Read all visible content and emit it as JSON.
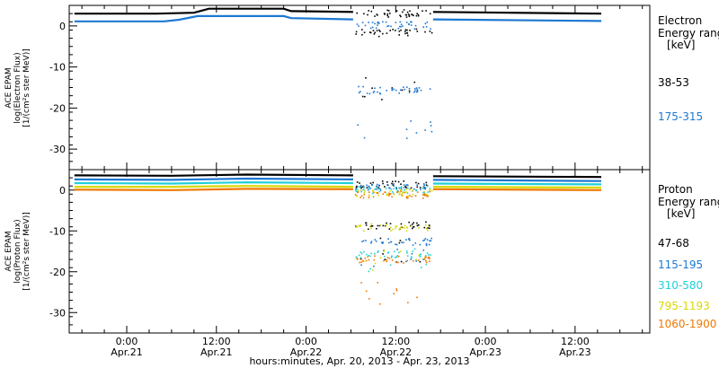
{
  "x_title": "hours:minutes, Apr. 20, 2013 - Apr. 23, 2013",
  "x_ticks": [
    {
      "t": 24,
      "time": "0:00",
      "date": "Apr.21"
    },
    {
      "t": 36,
      "time": "12:00",
      "date": "Apr.21"
    },
    {
      "t": 48,
      "time": "0:00",
      "date": "Apr.22"
    },
    {
      "t": 60,
      "time": "12:00",
      "date": "Apr.22"
    },
    {
      "t": 72,
      "time": "0:00",
      "date": "Apr.23"
    },
    {
      "t": 84,
      "time": "12:00",
      "date": "Apr.23"
    }
  ],
  "chart_data": [
    {
      "type": "scatter",
      "panel": "electron",
      "ylabel_lines": [
        "ACE EPAM",
        "log(Electron Flux)",
        "[1/(cm²s ster MeV)]"
      ],
      "ylim": [
        -35,
        5
      ],
      "yticks": [
        0,
        -10,
        -20,
        -30
      ],
      "xlim": [
        16.3,
        94
      ],
      "x_unit": "hours since Apr.20 0:00",
      "legend_title": [
        "Electron",
        "Energy range",
        "[keV]"
      ],
      "series": [
        {
          "name": "38-53",
          "color": "#000000",
          "baseline": [
            [
              17,
              3
            ],
            [
              28,
              3
            ],
            [
              33,
              3.2
            ],
            [
              35,
              4.2
            ],
            [
              45,
              4.2
            ],
            [
              46,
              3.6
            ],
            [
              54.3,
              3.4
            ]
          ],
          "baseline2": [
            [
              65,
              3.4
            ],
            [
              87.5,
              3.0
            ]
          ],
          "gap": {
            "start": 54.5,
            "end": 64.8,
            "levels": [
              3.2,
              -1.5,
              -14.8
            ]
          }
        },
        {
          "name": "175-315",
          "color": "#1e78d2",
          "baseline": [
            [
              17,
              1.1
            ],
            [
              29,
              1.1
            ],
            [
              31,
              1.5
            ],
            [
              33.5,
              2.4
            ],
            [
              45,
              2.4
            ],
            [
              46,
              1.9
            ],
            [
              54.3,
              1.6
            ]
          ],
          "baseline2": [
            [
              65,
              1.6
            ],
            [
              87.5,
              1.2
            ]
          ],
          "gap": {
            "start": 54.5,
            "end": 64.8,
            "levels": [
              0.3,
              -15.5,
              -25
            ]
          }
        }
      ]
    },
    {
      "type": "scatter",
      "panel": "proton",
      "ylabel_lines": [
        "ACE EPAM",
        "log(Proton Flux)",
        "[1/(cm²s ster MeV)]"
      ],
      "ylim": [
        -35,
        5
      ],
      "yticks": [
        0,
        -10,
        -20,
        -30
      ],
      "xlim": [
        16.3,
        94
      ],
      "x_unit": "hours since Apr.20 0:00",
      "legend_title": [
        "Proton",
        "Energy range",
        "[keV]"
      ],
      "series": [
        {
          "name": "47-68",
          "color": "#000000",
          "baseline": [
            [
              17,
              3.6
            ],
            [
              30,
              3.5
            ],
            [
              40,
              3.8
            ],
            [
              54.3,
              3.6
            ]
          ],
          "baseline2": [
            [
              65,
              3.4
            ],
            [
              87.5,
              3.2
            ]
          ],
          "gap": {
            "start": 54.5,
            "end": 64.8,
            "levels": [
              1.5,
              -8.5,
              -14.5
            ]
          }
        },
        {
          "name": "115-195",
          "color": "#1e78d2",
          "baseline": [
            [
              17,
              2.6
            ],
            [
              30,
              2.5
            ],
            [
              40,
              2.8
            ],
            [
              54.3,
              2.6
            ]
          ],
          "baseline2": [
            [
              65,
              2.5
            ],
            [
              87.5,
              2.2
            ]
          ],
          "gap": {
            "start": 54.5,
            "end": 64.8,
            "levels": [
              0.8,
              -12.5,
              -16
            ]
          }
        },
        {
          "name": "310-580",
          "color": "#20d0d8",
          "baseline": [
            [
              17,
              1.7
            ],
            [
              30,
              1.6
            ],
            [
              40,
              1.9
            ],
            [
              54.3,
              1.7
            ]
          ],
          "baseline2": [
            [
              65,
              1.6
            ],
            [
              87.5,
              1.4
            ]
          ],
          "gap": {
            "start": 54.5,
            "end": 64.8,
            "levels": [
              0.2,
              -15.5,
              -17
            ]
          }
        },
        {
          "name": "795-1193",
          "color": "#d8d800",
          "baseline": [
            [
              17,
              0.8
            ],
            [
              30,
              0.8
            ],
            [
              40,
              1.0
            ],
            [
              54.3,
              0.8
            ]
          ],
          "baseline2": [
            [
              65,
              0.8
            ],
            [
              87.5,
              0.6
            ]
          ],
          "gap": {
            "start": 54.5,
            "end": 64.8,
            "levels": [
              -0.5,
              -9,
              -16.5
            ]
          }
        },
        {
          "name": "1060-1900",
          "color": "#f07800",
          "baseline": [
            [
              17,
              0.1
            ],
            [
              30,
              0.0
            ],
            [
              40,
              0.3
            ],
            [
              54.3,
              0.2
            ]
          ],
          "baseline2": [
            [
              65,
              0.2
            ],
            [
              87.5,
              0.0
            ]
          ],
          "gap": {
            "start": 54.5,
            "end": 64.8,
            "levels": [
              -1.0,
              -16.8,
              -25
            ]
          }
        }
      ]
    }
  ]
}
